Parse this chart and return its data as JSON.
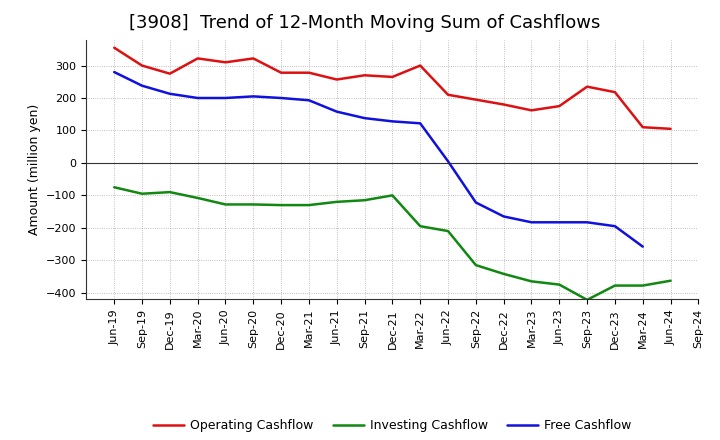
{
  "title": "[3908]  Trend of 12-Month Moving Sum of Cashflows",
  "ylabel": "Amount (million yen)",
  "xlabels": [
    "Jun-19",
    "Sep-19",
    "Dec-19",
    "Mar-20",
    "Jun-20",
    "Sep-20",
    "Dec-20",
    "Mar-21",
    "Jun-21",
    "Sep-21",
    "Dec-21",
    "Mar-22",
    "Jun-22",
    "Sep-22",
    "Dec-22",
    "Mar-23",
    "Jun-23",
    "Sep-23",
    "Dec-23",
    "Mar-24",
    "Jun-24",
    "Sep-24"
  ],
  "operating": [
    355,
    300,
    275,
    322,
    310,
    322,
    278,
    278,
    257,
    270,
    265,
    300,
    210,
    195,
    180,
    162,
    175,
    235,
    218,
    110,
    105,
    null
  ],
  "investing": [
    -75,
    -95,
    -90,
    -108,
    -128,
    -128,
    -130,
    -130,
    -120,
    -115,
    -100,
    -195,
    -210,
    -315,
    -342,
    -365,
    -375,
    -422,
    -378,
    -378,
    -363,
    null
  ],
  "free": [
    280,
    238,
    213,
    200,
    200,
    205,
    200,
    193,
    158,
    138,
    128,
    122,
    5,
    -122,
    -165,
    -183,
    -183,
    -183,
    -195,
    -258,
    null,
    null
  ],
  "operating_color": "#dd1111",
  "investing_color": "#118811",
  "free_color": "#1111dd",
  "ylim": [
    -420,
    380
  ],
  "yticks": [
    -400,
    -300,
    -200,
    -100,
    0,
    100,
    200,
    300
  ],
  "background_color": "#ffffff",
  "grid_color": "#999999",
  "title_fontsize": 13,
  "tick_fontsize": 8,
  "ylabel_fontsize": 9,
  "legend_labels": [
    "Operating Cashflow",
    "Investing Cashflow",
    "Free Cashflow"
  ],
  "linewidth": 1.8
}
